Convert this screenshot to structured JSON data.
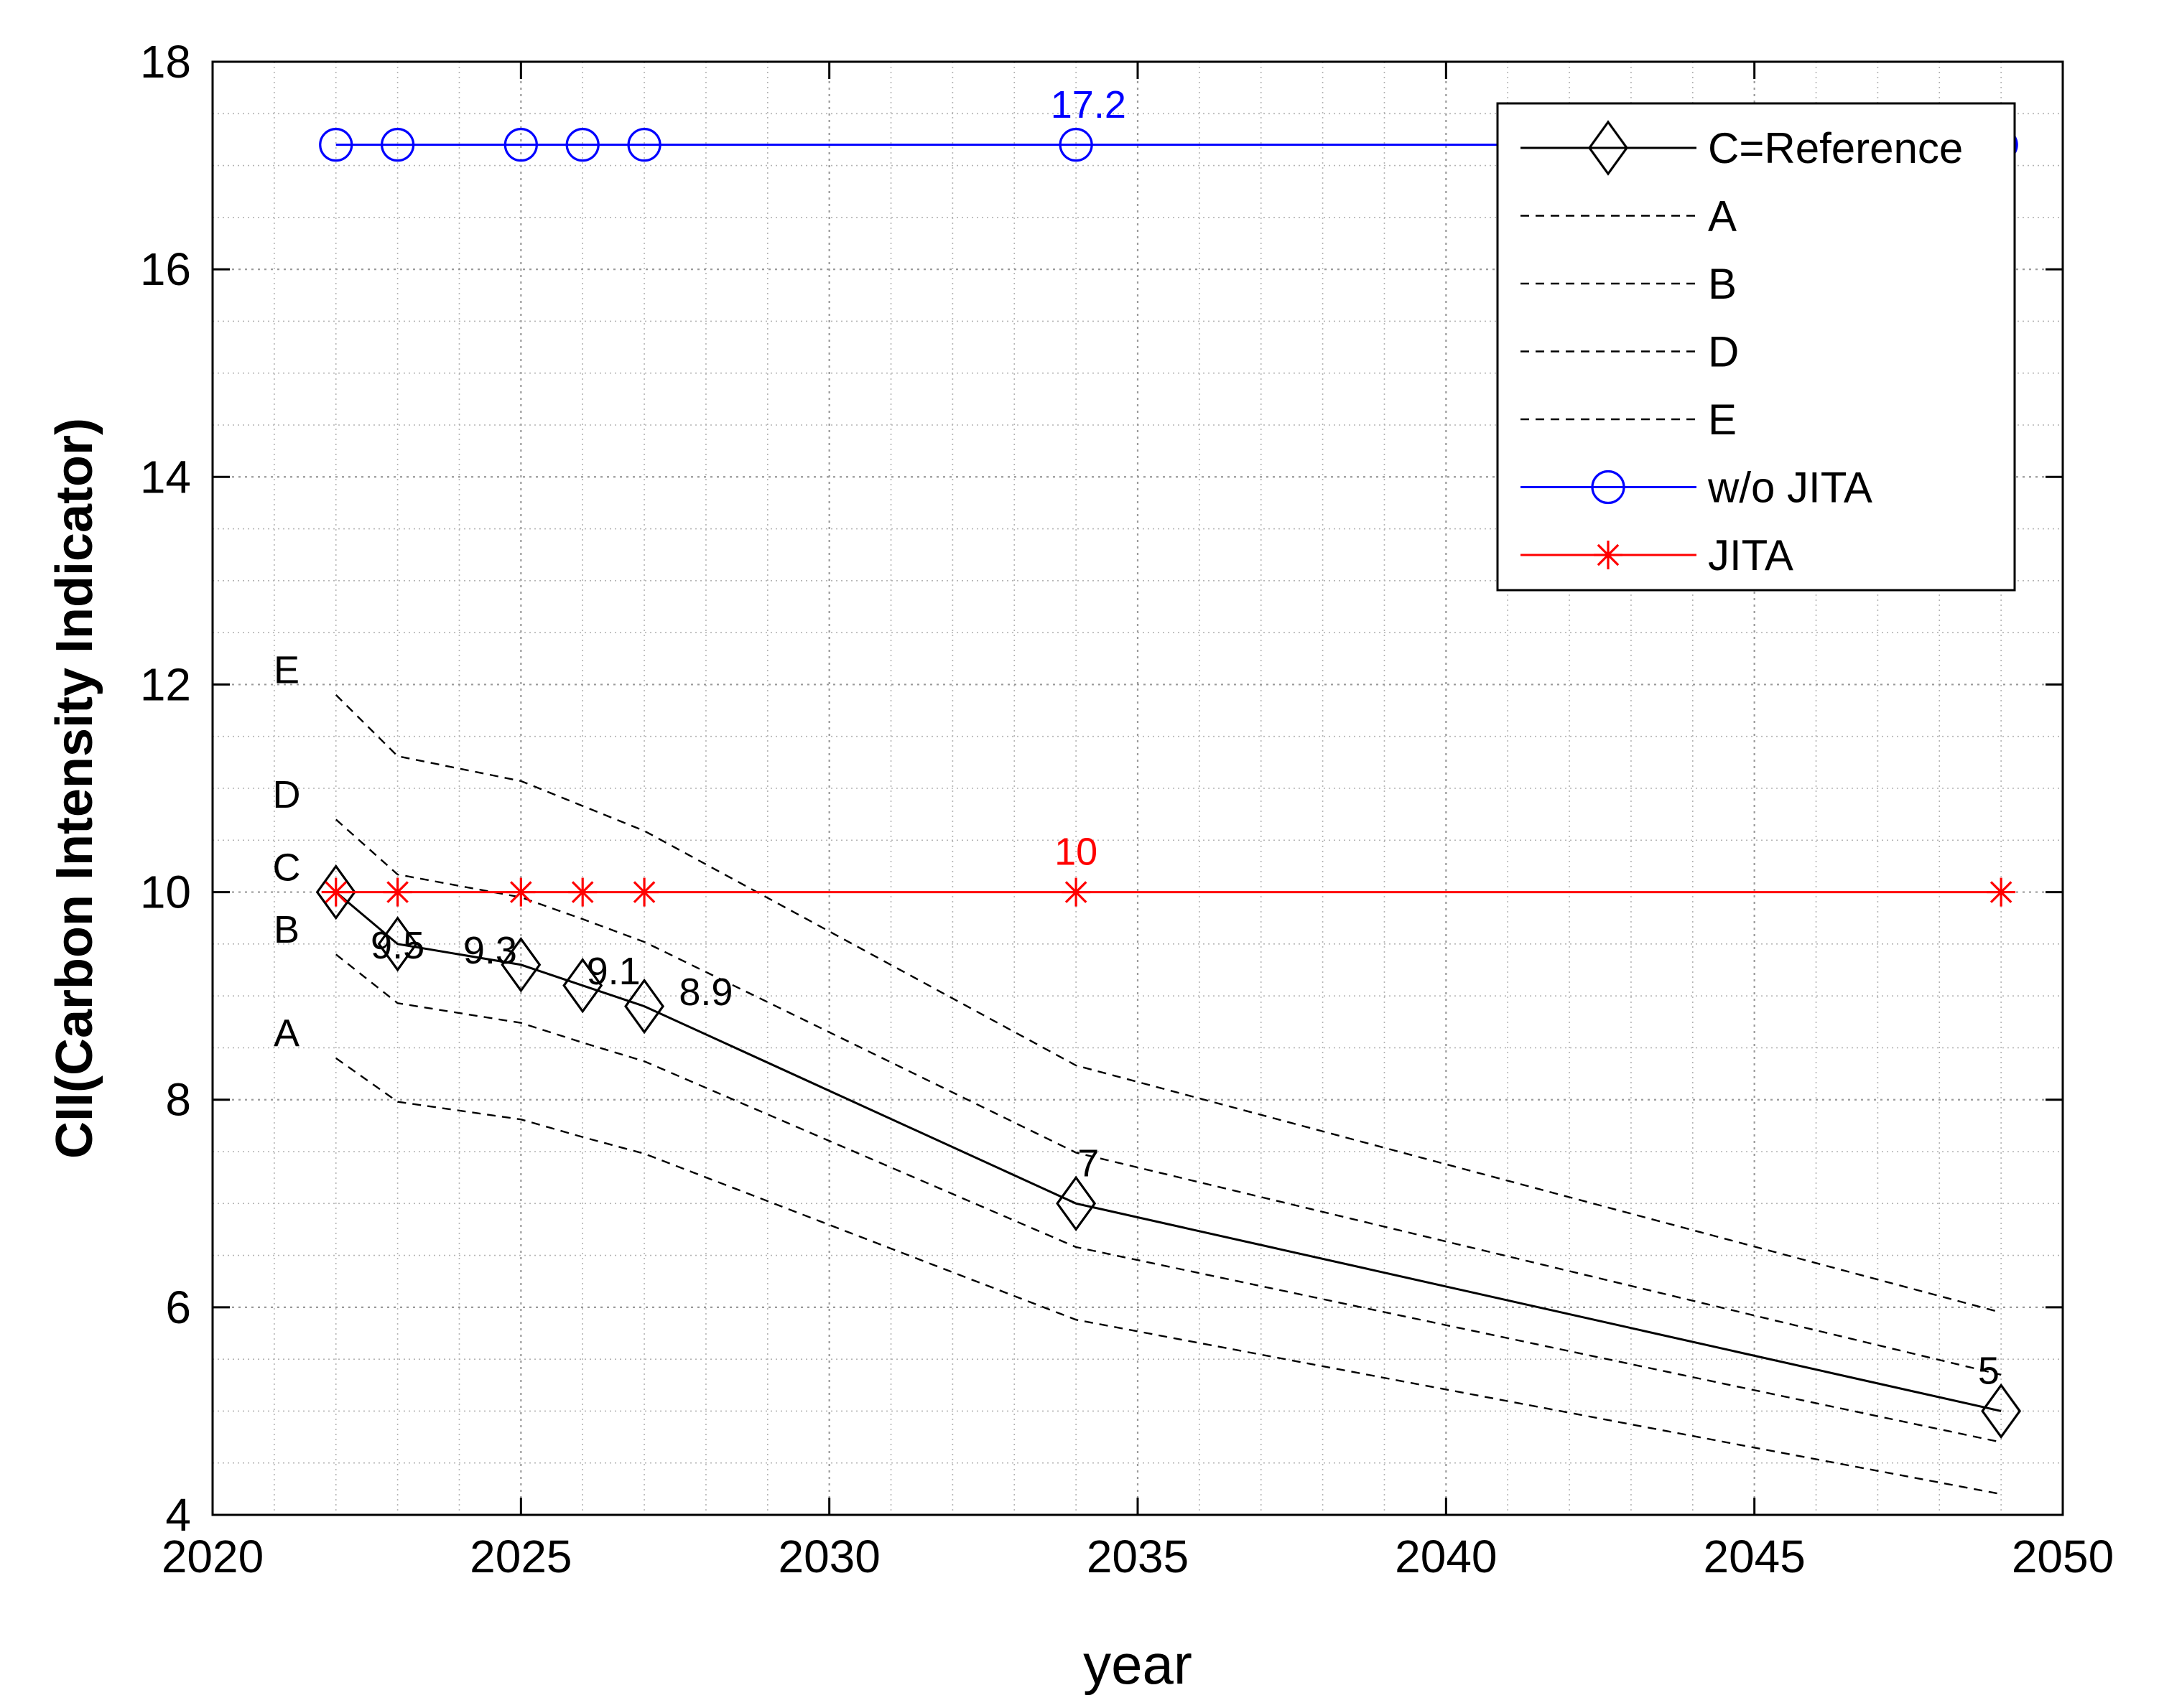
{
  "chart_data": {
    "type": "line",
    "title": "",
    "xlabel": "year",
    "ylabel": "CII(Carbon Intensity Indicator)",
    "xlim": [
      2020,
      2050
    ],
    "ylim": [
      4,
      18
    ],
    "xticks": [
      2020,
      2025,
      2030,
      2035,
      2040,
      2045,
      2050
    ],
    "yticks": [
      4,
      6,
      8,
      10,
      12,
      14,
      16,
      18
    ],
    "x_minor_step": 1,
    "y_minor_step": 0.5,
    "grid": "major and minor, dotted",
    "legend_position": "top-right",
    "colors": {
      "reference": "#000000",
      "bands": "#000000",
      "wo_jita": "#0000ff",
      "jita": "#ff0000",
      "grid": "#b4b4b4"
    },
    "series": [
      {
        "name": "C=Reference",
        "style": "solid",
        "marker": "diamond",
        "color": "#000000",
        "x": [
          2022,
          2023,
          2025,
          2026,
          2027,
          2034,
          2049
        ],
        "y": [
          10,
          9.5,
          9.3,
          9.1,
          8.9,
          7,
          5
        ]
      },
      {
        "name": "A",
        "style": "dashed",
        "marker": "none",
        "color": "#000000",
        "x": [
          2022,
          2023,
          2025,
          2026,
          2027,
          2034,
          2049
        ],
        "y": [
          8.4,
          7.98,
          7.81,
          7.64,
          7.48,
          5.88,
          4.2
        ]
      },
      {
        "name": "B",
        "style": "dashed",
        "marker": "none",
        "color": "#000000",
        "x": [
          2022,
          2023,
          2025,
          2026,
          2027,
          2034,
          2049
        ],
        "y": [
          9.4,
          8.93,
          8.74,
          8.55,
          8.37,
          6.58,
          4.7
        ]
      },
      {
        "name": "D",
        "style": "dashed",
        "marker": "none",
        "color": "#000000",
        "x": [
          2022,
          2023,
          2025,
          2026,
          2027,
          2034,
          2049
        ],
        "y": [
          10.7,
          10.17,
          9.95,
          9.74,
          9.52,
          7.49,
          5.35
        ]
      },
      {
        "name": "E",
        "style": "dashed",
        "marker": "none",
        "color": "#000000",
        "x": [
          2022,
          2023,
          2025,
          2026,
          2027,
          2034,
          2049
        ],
        "y": [
          11.9,
          11.31,
          11.07,
          10.83,
          10.59,
          8.33,
          5.95
        ]
      },
      {
        "name": "w/o JITA",
        "style": "solid",
        "marker": "circle",
        "color": "#0000ff",
        "x": [
          2022,
          2023,
          2025,
          2026,
          2027,
          2034,
          2049
        ],
        "y": [
          17.2,
          17.2,
          17.2,
          17.2,
          17.2,
          17.2,
          17.2
        ]
      },
      {
        "name": "JITA",
        "style": "solid",
        "marker": "asterisk",
        "color": "#ff0000",
        "x": [
          2022,
          2023,
          2025,
          2026,
          2027,
          2034,
          2049
        ],
        "y": [
          10,
          10,
          10,
          10,
          10,
          10,
          10
        ]
      }
    ],
    "band_labels": [
      {
        "text": "E",
        "x": 2021.2,
        "y": 12.15
      },
      {
        "text": "D",
        "x": 2021.2,
        "y": 10.95
      },
      {
        "text": "C",
        "x": 2021.2,
        "y": 10.25
      },
      {
        "text": "B",
        "x": 2021.2,
        "y": 9.65
      },
      {
        "text": "A",
        "x": 2021.2,
        "y": 8.65
      }
    ],
    "annotations": [
      {
        "text": "9.5",
        "x": 2023,
        "y": 9.5,
        "color": "#000000"
      },
      {
        "text": "9.3",
        "x": 2024.5,
        "y": 9.45,
        "color": "#000000"
      },
      {
        "text": "9.1",
        "x": 2026.5,
        "y": 9.25,
        "color": "#000000"
      },
      {
        "text": "8.9",
        "x": 2028.0,
        "y": 9.05,
        "color": "#000000"
      },
      {
        "text": "7",
        "x": 2034.2,
        "y": 7.4,
        "color": "#000000"
      },
      {
        "text": "5",
        "x": 2048.8,
        "y": 5.4,
        "color": "#000000"
      },
      {
        "text": "17.2",
        "x": 2034.2,
        "y": 17.6,
        "color": "#0000ff"
      },
      {
        "text": "10",
        "x": 2034,
        "y": 10.4,
        "color": "#ff0000"
      }
    ]
  }
}
